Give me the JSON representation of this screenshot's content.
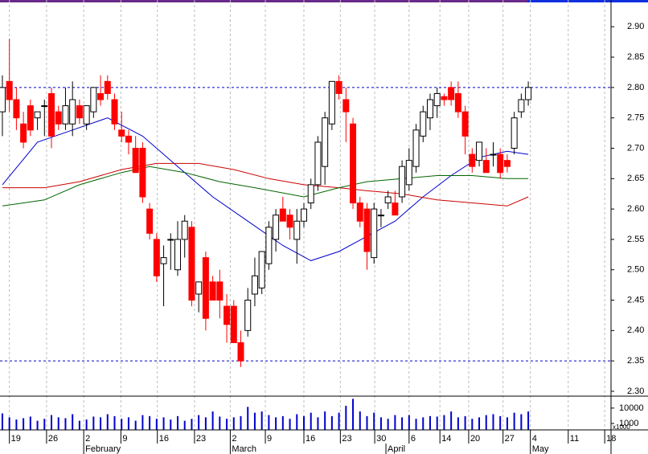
{
  "chart_data": {
    "type": "candlestick",
    "xlim": [
      -0.34,
      86.8
    ],
    "ylim": [
      2.292,
      2.944
    ],
    "yticks": [
      {
        "value": 2.3,
        "label": "2.30"
      },
      2.35,
      {
        "value": 2.4,
        "label": "2.40"
      },
      2.45,
      {
        "value": 2.5,
        "label": "2.50"
      },
      2.55,
      {
        "value": 2.6,
        "label": "2.60"
      },
      2.65,
      {
        "value": 2.7,
        "label": "2.70"
      },
      2.75,
      {
        "value": 2.8,
        "label": "2.80"
      },
      2.85,
      {
        "value": 2.9,
        "label": "2.90"
      }
    ],
    "xticks": [
      {
        "value": 1,
        "label": "19"
      },
      {
        "value": 6.3,
        "label": "26"
      },
      {
        "value": 11.6,
        "label": "2"
      },
      {
        "value": 16.9,
        "label": "9"
      },
      {
        "value": 22.1,
        "label": "16"
      },
      {
        "value": 27.4,
        "label": "23"
      },
      {
        "value": 32.5,
        "label": "2"
      },
      {
        "value": 37.5,
        "label": "9"
      },
      {
        "value": 43,
        "label": "16"
      },
      {
        "value": 48.2,
        "label": "23"
      },
      {
        "value": 53.1,
        "label": "30"
      },
      {
        "value": 58,
        "label": "6"
      },
      {
        "value": 62.4,
        "label": "14"
      },
      {
        "value": 66.5,
        "label": "20"
      },
      {
        "value": 71.4,
        "label": "27"
      },
      {
        "value": 75.3,
        "label": "4"
      },
      {
        "value": 80.7,
        "label": "11"
      },
      {
        "value": 85.9,
        "label": "18"
      }
    ],
    "month_ticks": [
      {
        "value": 11.6,
        "label": "February"
      },
      {
        "value": 32.5,
        "label": "March"
      },
      {
        "value": 54.7,
        "label": "April"
      },
      {
        "value": 75.3,
        "label": "May"
      }
    ],
    "hlines": [
      2.8,
      2.35
    ],
    "hline_color": "#0000cc",
    "up_color": "#ffffff",
    "down_color": "#ff0000",
    "candles": {
      "open": [
        2.76,
        2.81,
        2.78,
        2.74,
        2.77,
        2.75,
        2.77,
        2.79,
        2.76,
        2.74,
        2.74,
        2.77,
        2.74,
        2.76,
        2.79,
        2.81,
        2.78,
        2.73,
        2.72,
        2.7,
        2.7,
        2.6,
        2.55,
        2.51,
        2.55,
        2.5,
        2.55,
        2.57,
        2.46,
        2.52,
        2.48,
        2.48,
        2.44,
        2.44,
        2.38,
        2.4,
        2.46,
        2.47,
        2.51,
        2.55,
        2.6,
        2.59,
        2.55,
        2.58,
        2.61,
        2.64,
        2.67,
        2.74,
        2.81,
        2.78,
        2.74,
        2.61,
        2.6,
        2.52,
        2.59,
        2.61,
        2.61,
        2.62,
        2.64,
        2.67,
        2.72,
        2.75,
        2.77,
        2.785,
        2.8,
        2.79,
        2.76,
        2.69,
        2.68,
        2.68,
        2.69,
        2.69,
        2.68,
        2.7,
        2.76,
        2.78
      ],
      "high": [
        2.82,
        2.88,
        2.8,
        2.76,
        2.78,
        2.76,
        2.78,
        2.8,
        2.77,
        2.8,
        2.81,
        2.78,
        2.77,
        2.8,
        2.82,
        2.82,
        2.79,
        2.76,
        2.73,
        2.72,
        2.71,
        2.61,
        2.56,
        2.54,
        2.56,
        2.58,
        2.59,
        2.58,
        2.48,
        2.53,
        2.49,
        2.5,
        2.46,
        2.45,
        2.4,
        2.47,
        2.52,
        2.53,
        2.58,
        2.6,
        2.62,
        2.6,
        2.6,
        2.61,
        2.65,
        2.72,
        2.76,
        2.81,
        2.82,
        2.8,
        2.75,
        2.62,
        2.61,
        2.61,
        2.6,
        2.63,
        2.63,
        2.68,
        2.7,
        2.74,
        2.77,
        2.79,
        2.8,
        2.79,
        2.81,
        2.81,
        2.77,
        2.7,
        2.71,
        2.7,
        2.71,
        2.7,
        2.69,
        2.76,
        2.79,
        2.81
      ],
      "low": [
        2.72,
        2.76,
        2.73,
        2.7,
        2.72,
        2.73,
        2.72,
        2.7,
        2.73,
        2.73,
        2.72,
        2.74,
        2.73,
        2.75,
        2.77,
        2.78,
        2.73,
        2.71,
        2.69,
        2.66,
        2.61,
        2.55,
        2.48,
        2.44,
        2.5,
        2.49,
        2.52,
        2.44,
        2.43,
        2.4,
        2.45,
        2.42,
        2.38,
        2.38,
        2.34,
        2.39,
        2.44,
        2.46,
        2.5,
        2.53,
        2.58,
        2.55,
        2.51,
        2.57,
        2.6,
        2.63,
        2.64,
        2.73,
        2.78,
        2.71,
        2.6,
        2.57,
        2.5,
        2.51,
        2.57,
        2.6,
        2.59,
        2.61,
        2.63,
        2.66,
        2.71,
        2.73,
        2.75,
        2.77,
        2.77,
        2.75,
        2.69,
        2.66,
        2.67,
        2.66,
        2.67,
        2.65,
        2.66,
        2.69,
        2.75,
        2.77
      ],
      "close": [
        2.8,
        2.78,
        2.75,
        2.71,
        2.73,
        2.76,
        2.77,
        2.72,
        2.74,
        2.77,
        2.78,
        2.75,
        2.77,
        2.8,
        2.78,
        2.79,
        2.74,
        2.72,
        2.71,
        2.66,
        2.62,
        2.56,
        2.49,
        2.52,
        2.55,
        2.55,
        2.58,
        2.45,
        2.48,
        2.42,
        2.45,
        2.45,
        2.41,
        2.38,
        2.35,
        2.45,
        2.49,
        2.53,
        2.57,
        2.59,
        2.58,
        2.57,
        2.58,
        2.6,
        2.64,
        2.71,
        2.75,
        2.81,
        2.79,
        2.76,
        2.61,
        2.58,
        2.53,
        2.6,
        2.59,
        2.62,
        2.59,
        2.67,
        2.68,
        2.73,
        2.76,
        2.78,
        2.79,
        2.78,
        2.78,
        2.76,
        2.72,
        2.67,
        2.71,
        2.66,
        2.69,
        2.66,
        2.67,
        2.75,
        2.78,
        2.8
      ]
    },
    "lines": [
      {
        "color": "#0000cc",
        "x": [
          0,
          5,
          10,
          15,
          20,
          25,
          30,
          35,
          40,
          44,
          48,
          52,
          56,
          60,
          64,
          68,
          72,
          75
        ],
        "values": [
          2.64,
          2.71,
          2.73,
          2.75,
          2.72,
          2.67,
          2.62,
          2.58,
          2.54,
          2.515,
          2.53,
          2.555,
          2.58,
          2.62,
          2.655,
          2.685,
          2.695,
          2.69
        ]
      },
      {
        "color": "#cc0000",
        "x": [
          0,
          6,
          11,
          17,
          22,
          28,
          33,
          38,
          43,
          48,
          52,
          57,
          62,
          67,
          72,
          75
        ],
        "values": [
          2.635,
          2.635,
          2.645,
          2.665,
          2.675,
          2.675,
          2.665,
          2.65,
          2.64,
          2.635,
          2.63,
          2.625,
          2.615,
          2.61,
          2.605,
          2.62
        ]
      },
      {
        "color": "#006600",
        "x": [
          0,
          6,
          11,
          17,
          21,
          26,
          31,
          36,
          43,
          48,
          52,
          57,
          62,
          67,
          72,
          75
        ],
        "values": [
          2.605,
          2.615,
          2.64,
          2.66,
          2.67,
          2.66,
          2.645,
          2.635,
          2.62,
          2.635,
          2.645,
          2.65,
          2.655,
          2.655,
          2.65,
          2.65
        ]
      }
    ],
    "volume": {
      "color": "#0000cc",
      "log": true,
      "ylim": [
        380,
        60000
      ],
      "yticks": [
        10000,
        1000
      ],
      "unit_label": "x1000",
      "values": [
        4500,
        2500,
        1800,
        2200,
        2800,
        1500,
        2000,
        3500,
        2500,
        2200,
        4000,
        1500,
        1800,
        2800,
        2500,
        4000,
        3000,
        2000,
        2500,
        1500,
        3500,
        3000,
        2000,
        2500,
        1800,
        3000,
        1500,
        2000,
        3500,
        2500,
        6000,
        2800,
        2000,
        2500,
        3000,
        12000,
        5000,
        6000,
        3500,
        2500,
        3000,
        2000,
        4000,
        3000,
        5000,
        2500,
        6000,
        3000,
        5000,
        14000,
        40000,
        6000,
        3000,
        5000,
        2500,
        2000,
        3500,
        2500,
        3500,
        2000,
        2500,
        3000,
        2800,
        3500,
        6000,
        2500,
        3000,
        2000,
        2500,
        3500,
        4000,
        3000,
        2500,
        5000,
        4000,
        6000
      ]
    }
  }
}
